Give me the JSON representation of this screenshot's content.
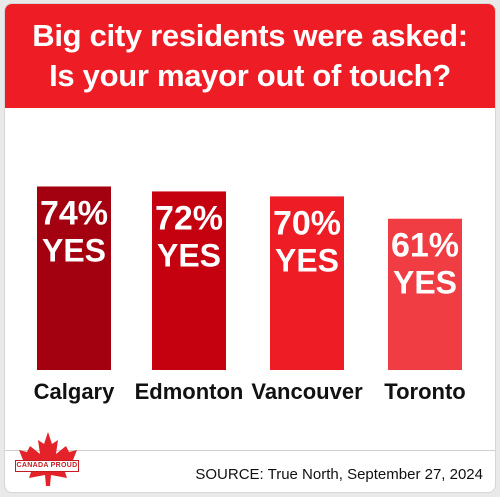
{
  "chart_data": {
    "type": "bar",
    "title_lines": [
      "Big city residents were asked:",
      "Is your mayor out of touch?"
    ],
    "categories": [
      "Calgary",
      "Edmonton",
      "Vancouver",
      "Toronto"
    ],
    "values": [
      74,
      72,
      70,
      61
    ],
    "value_labels": [
      "74%",
      "72%",
      "70%",
      "61%"
    ],
    "answer_label": "YES",
    "bar_colors": [
      "#a30010",
      "#c5000f",
      "#ee1c25",
      "#f03c43"
    ],
    "ylim": [
      0,
      100
    ],
    "grid": false,
    "legend": "none"
  },
  "source_text": "SOURCE: True North, September 27, 2024",
  "logo": {
    "icon": "maple-leaf-icon",
    "text": "CANADA PROUD",
    "color": "#e4222a"
  }
}
